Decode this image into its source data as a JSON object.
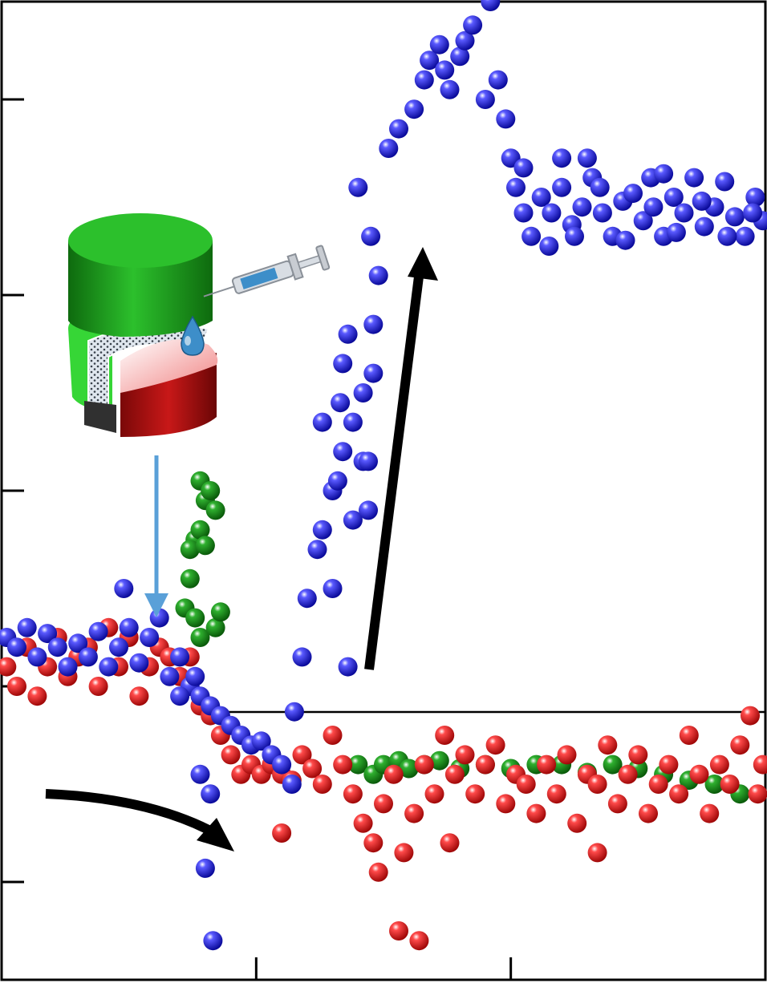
{
  "colors": {
    "frame": "#000000",
    "blue": "#1414d8",
    "red": "#e01818",
    "green": "#1c8a1c",
    "annot_arrow_blue": "#5aa0d8",
    "annot_arrow_black": "#000000",
    "cylinder_green": "#22a122",
    "cylinder_red": "#c01818",
    "membrane_gray": "#303030",
    "syringe_liquid": "#3d8ec9"
  },
  "illustration": {
    "name": "triboelectric-device-with-syringe-droplet",
    "parts": [
      "green-cylinder",
      "red-cylinder",
      "hexagonal-mesh-layer",
      "syringe",
      "water-droplet"
    ]
  },
  "chart_data": {
    "type": "scatter",
    "xlim": [
      0,
      3
    ],
    "ylim": [
      -0.5,
      4.5
    ],
    "x_ticks": [
      0,
      1,
      2,
      3
    ],
    "y_ticks": [
      0,
      1,
      2,
      3,
      4
    ],
    "tick_labels_visible": false,
    "grid": false,
    "baseline_y": 0.9,
    "series": [
      {
        "color_key": "blue",
        "points": [
          [
            0.02,
            1.25
          ],
          [
            0.06,
            1.2
          ],
          [
            0.1,
            1.3
          ],
          [
            0.14,
            1.15
          ],
          [
            0.18,
            1.27
          ],
          [
            0.22,
            1.2
          ],
          [
            0.26,
            1.1
          ],
          [
            0.3,
            1.22
          ],
          [
            0.34,
            1.15
          ],
          [
            0.38,
            1.28
          ],
          [
            0.42,
            1.1
          ],
          [
            0.46,
            1.2
          ],
          [
            0.5,
            1.3
          ],
          [
            0.54,
            1.12
          ],
          [
            0.58,
            1.25
          ],
          [
            0.62,
            1.35
          ],
          [
            0.66,
            1.05
          ],
          [
            0.7,
            1.15
          ],
          [
            0.74,
            1.0
          ],
          [
            0.78,
            0.95
          ],
          [
            0.82,
            0.9
          ],
          [
            0.86,
            0.85
          ],
          [
            0.9,
            0.8
          ],
          [
            0.94,
            0.75
          ],
          [
            0.98,
            0.7
          ],
          [
            1.02,
            0.72
          ],
          [
            1.06,
            0.65
          ],
          [
            1.1,
            0.6
          ],
          [
            1.14,
            0.5
          ],
          [
            0.78,
            0.55
          ],
          [
            0.82,
            0.45
          ],
          [
            0.48,
            1.5
          ],
          [
            0.76,
            1.05
          ],
          [
            0.7,
            0.95
          ],
          [
            0.8,
            0.07
          ],
          [
            0.83,
            -0.3
          ],
          [
            1.15,
            0.87
          ],
          [
            1.18,
            1.15
          ],
          [
            1.2,
            1.45
          ],
          [
            1.24,
            1.7
          ],
          [
            1.26,
            1.8
          ],
          [
            1.3,
            2.0
          ],
          [
            1.34,
            2.2
          ],
          [
            1.38,
            2.35
          ],
          [
            1.42,
            2.5
          ],
          [
            1.46,
            2.85
          ],
          [
            1.34,
            2.65
          ],
          [
            1.36,
            2.8
          ],
          [
            1.33,
            2.45
          ],
          [
            1.32,
            2.05
          ],
          [
            1.42,
            2.15
          ],
          [
            1.38,
            1.85
          ],
          [
            1.44,
            1.9
          ],
          [
            1.46,
            2.6
          ],
          [
            1.44,
            2.15
          ],
          [
            1.26,
            2.35
          ],
          [
            1.3,
            1.5
          ],
          [
            1.36,
            1.1
          ],
          [
            1.4,
            3.55
          ],
          [
            1.45,
            3.3
          ],
          [
            1.48,
            3.1
          ],
          [
            1.52,
            3.75
          ],
          [
            1.56,
            3.85
          ],
          [
            1.62,
            3.95
          ],
          [
            1.66,
            4.1
          ],
          [
            1.68,
            4.2
          ],
          [
            1.72,
            4.28
          ],
          [
            1.74,
            4.15
          ],
          [
            1.76,
            4.05
          ],
          [
            1.8,
            4.22
          ],
          [
            1.82,
            4.3
          ],
          [
            1.85,
            4.38
          ],
          [
            1.9,
            4.0
          ],
          [
            1.92,
            4.5
          ],
          [
            1.95,
            4.1
          ],
          [
            1.98,
            3.9
          ],
          [
            2.0,
            3.7
          ],
          [
            2.02,
            3.55
          ],
          [
            2.05,
            3.42
          ],
          [
            2.08,
            3.3
          ],
          [
            2.12,
            3.5
          ],
          [
            2.16,
            3.42
          ],
          [
            2.2,
            3.55
          ],
          [
            2.24,
            3.36
          ],
          [
            2.28,
            3.45
          ],
          [
            2.32,
            3.6
          ],
          [
            2.36,
            3.42
          ],
          [
            2.4,
            3.3
          ],
          [
            2.44,
            3.48
          ],
          [
            2.48,
            3.52
          ],
          [
            2.52,
            3.38
          ],
          [
            2.56,
            3.45
          ],
          [
            2.6,
            3.3
          ],
          [
            2.64,
            3.5
          ],
          [
            2.68,
            3.42
          ],
          [
            2.72,
            3.6
          ],
          [
            2.76,
            3.35
          ],
          [
            2.8,
            3.45
          ],
          [
            2.84,
            3.58
          ],
          [
            2.88,
            3.4
          ],
          [
            2.92,
            3.3
          ],
          [
            2.96,
            3.5
          ],
          [
            2.99,
            3.38
          ],
          [
            2.05,
            3.65
          ],
          [
            2.15,
            3.25
          ],
          [
            2.25,
            3.3
          ],
          [
            2.35,
            3.55
          ],
          [
            2.45,
            3.28
          ],
          [
            2.55,
            3.6
          ],
          [
            2.65,
            3.32
          ],
          [
            2.75,
            3.48
          ],
          [
            2.85,
            3.3
          ],
          [
            2.95,
            3.42
          ],
          [
            2.2,
            3.7
          ],
          [
            2.3,
            3.7
          ],
          [
            2.6,
            3.62
          ]
        ]
      },
      {
        "color_key": "red",
        "points": [
          [
            0.02,
            1.1
          ],
          [
            0.06,
            1.0
          ],
          [
            0.1,
            1.2
          ],
          [
            0.14,
            0.95
          ],
          [
            0.18,
            1.1
          ],
          [
            0.22,
            1.25
          ],
          [
            0.26,
            1.05
          ],
          [
            0.3,
            1.15
          ],
          [
            0.34,
            1.2
          ],
          [
            0.38,
            1.0
          ],
          [
            0.42,
            1.3
          ],
          [
            0.46,
            1.1
          ],
          [
            0.5,
            1.25
          ],
          [
            0.54,
            0.95
          ],
          [
            0.58,
            1.1
          ],
          [
            0.62,
            1.2
          ],
          [
            0.66,
            1.15
          ],
          [
            0.7,
            1.05
          ],
          [
            0.74,
            1.15
          ],
          [
            0.78,
            0.9
          ],
          [
            0.82,
            0.85
          ],
          [
            0.86,
            0.75
          ],
          [
            0.9,
            0.65
          ],
          [
            0.94,
            0.55
          ],
          [
            0.98,
            0.6
          ],
          [
            1.02,
            0.55
          ],
          [
            1.06,
            0.6
          ],
          [
            1.1,
            0.55
          ],
          [
            1.14,
            0.52
          ],
          [
            1.18,
            0.65
          ],
          [
            1.22,
            0.58
          ],
          [
            1.26,
            0.5
          ],
          [
            1.3,
            0.75
          ],
          [
            1.34,
            0.6
          ],
          [
            1.38,
            0.45
          ],
          [
            1.42,
            0.3
          ],
          [
            1.46,
            0.2
          ],
          [
            1.5,
            0.4
          ],
          [
            1.54,
            0.55
          ],
          [
            1.58,
            0.15
          ],
          [
            1.62,
            0.35
          ],
          [
            1.66,
            0.6
          ],
          [
            1.7,
            0.45
          ],
          [
            1.74,
            0.75
          ],
          [
            1.78,
            0.55
          ],
          [
            1.82,
            0.65
          ],
          [
            1.86,
            0.45
          ],
          [
            1.9,
            0.6
          ],
          [
            1.94,
            0.7
          ],
          [
            1.98,
            0.4
          ],
          [
            2.02,
            0.55
          ],
          [
            2.06,
            0.5
          ],
          [
            2.1,
            0.35
          ],
          [
            2.14,
            0.6
          ],
          [
            2.18,
            0.45
          ],
          [
            2.22,
            0.65
          ],
          [
            2.26,
            0.3
          ],
          [
            2.3,
            0.55
          ],
          [
            2.34,
            0.5
          ],
          [
            2.38,
            0.7
          ],
          [
            2.42,
            0.4
          ],
          [
            2.46,
            0.55
          ],
          [
            2.5,
            0.65
          ],
          [
            2.54,
            0.35
          ],
          [
            2.58,
            0.5
          ],
          [
            2.62,
            0.6
          ],
          [
            2.66,
            0.45
          ],
          [
            2.7,
            0.75
          ],
          [
            2.74,
            0.55
          ],
          [
            2.78,
            0.35
          ],
          [
            2.82,
            0.6
          ],
          [
            2.86,
            0.5
          ],
          [
            2.9,
            0.7
          ],
          [
            2.94,
            0.85
          ],
          [
            2.97,
            0.45
          ],
          [
            2.99,
            0.6
          ],
          [
            1.56,
            -0.25
          ],
          [
            1.64,
            -0.3
          ],
          [
            1.1,
            0.25
          ],
          [
            1.48,
            0.05
          ],
          [
            1.76,
            0.2
          ],
          [
            2.34,
            0.15
          ]
        ]
      },
      {
        "color_key": "green",
        "points": [
          [
            0.78,
            2.05
          ],
          [
            0.8,
            1.95
          ],
          [
            0.82,
            2.0
          ],
          [
            0.84,
            1.9
          ],
          [
            0.76,
            1.75
          ],
          [
            0.74,
            1.7
          ],
          [
            0.78,
            1.8
          ],
          [
            0.8,
            1.72
          ],
          [
            0.72,
            1.4
          ],
          [
            0.76,
            1.35
          ],
          [
            0.78,
            1.25
          ],
          [
            0.84,
            1.3
          ],
          [
            0.86,
            1.38
          ],
          [
            0.74,
            1.55
          ],
          [
            1.4,
            0.6
          ],
          [
            1.46,
            0.55
          ],
          [
            1.5,
            0.6
          ],
          [
            1.56,
            0.62
          ],
          [
            1.6,
            0.58
          ],
          [
            1.66,
            0.6
          ],
          [
            1.72,
            0.62
          ],
          [
            1.8,
            0.58
          ],
          [
            1.9,
            0.6
          ],
          [
            2.0,
            0.58
          ],
          [
            2.1,
            0.6
          ],
          [
            2.2,
            0.6
          ],
          [
            2.3,
            0.56
          ],
          [
            2.4,
            0.6
          ],
          [
            2.5,
            0.58
          ],
          [
            2.6,
            0.55
          ],
          [
            2.7,
            0.52
          ],
          [
            2.8,
            0.5
          ],
          [
            2.9,
            0.45
          ]
        ]
      }
    ]
  }
}
